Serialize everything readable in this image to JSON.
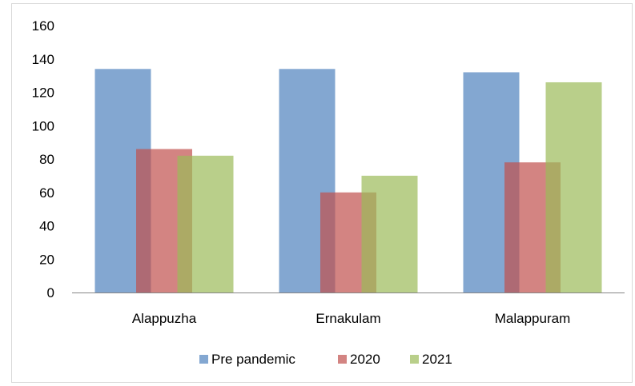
{
  "chart_data": {
    "type": "bar",
    "categories": [
      "Alappuzha",
      "Ernakulam",
      "Malappuram"
    ],
    "series": [
      {
        "name": "Pre pandemic",
        "values": [
          134,
          134,
          132
        ],
        "color": "#4F81BD"
      },
      {
        "name": "2020",
        "values": [
          86,
          60,
          78
        ],
        "color": "#C0504D"
      },
      {
        "name": "2021",
        "values": [
          82,
          70,
          126
        ],
        "color": "#9BBB59"
      }
    ],
    "ylim": [
      0,
      160
    ],
    "yticks": [
      0,
      20,
      40,
      60,
      80,
      100,
      120,
      140,
      160
    ],
    "grid": false,
    "legend_position": "bottom",
    "bar_opacity": 0.7,
    "bar_overlap": "bars overlap partially within each category"
  }
}
